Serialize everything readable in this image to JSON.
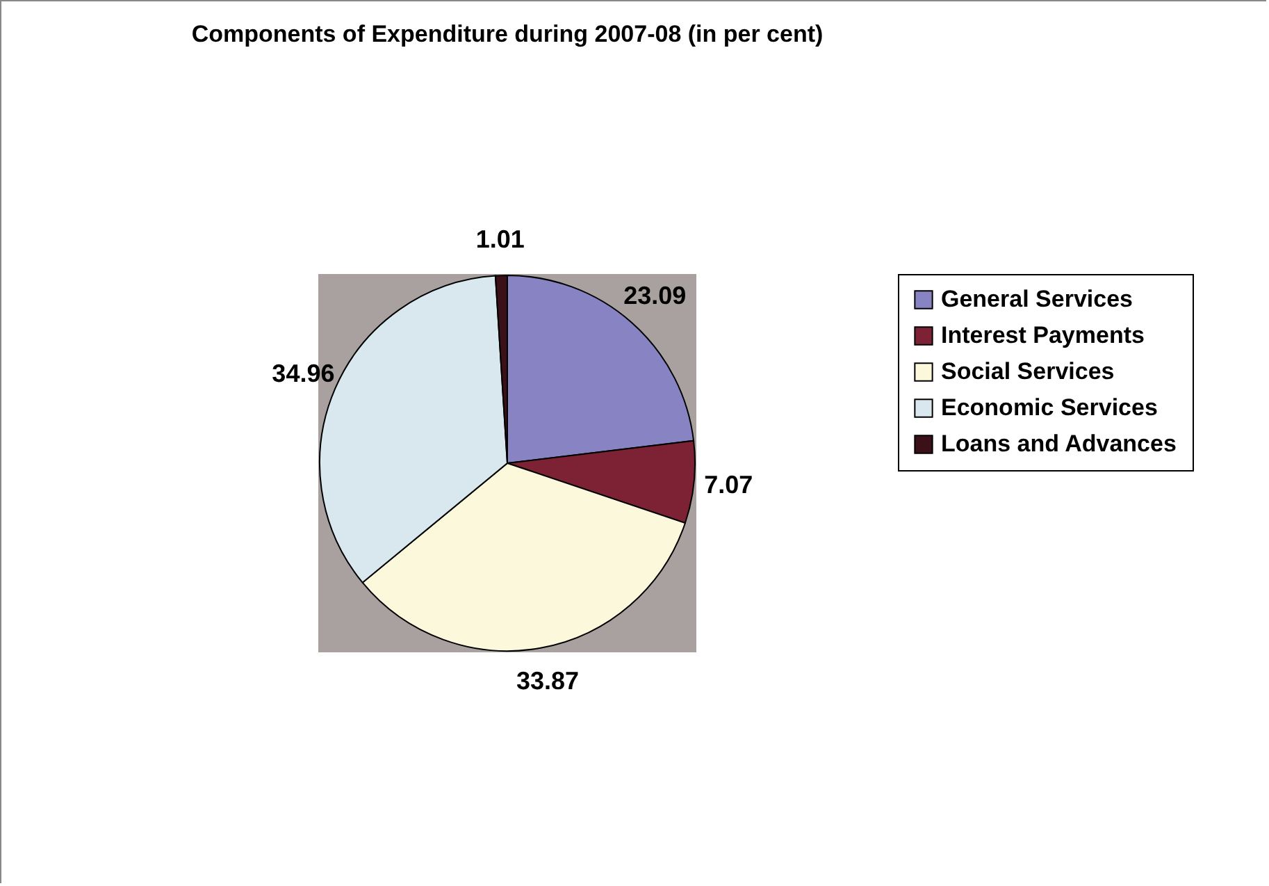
{
  "chart_data": {
    "type": "pie",
    "title": "Components of Expenditure during 2007-08 (in per cent)",
    "categories": [
      "General Services",
      "Interest Payments",
      "Social Services",
      "Economic Services",
      "Loans and Advances"
    ],
    "values": [
      23.09,
      7.07,
      33.87,
      34.96,
      1.01
    ],
    "colors": [
      "#8884c4",
      "#7c2234",
      "#fbf8dc",
      "#d9e8ee",
      "#3c1018"
    ],
    "data_labels": true,
    "legend": "right"
  }
}
